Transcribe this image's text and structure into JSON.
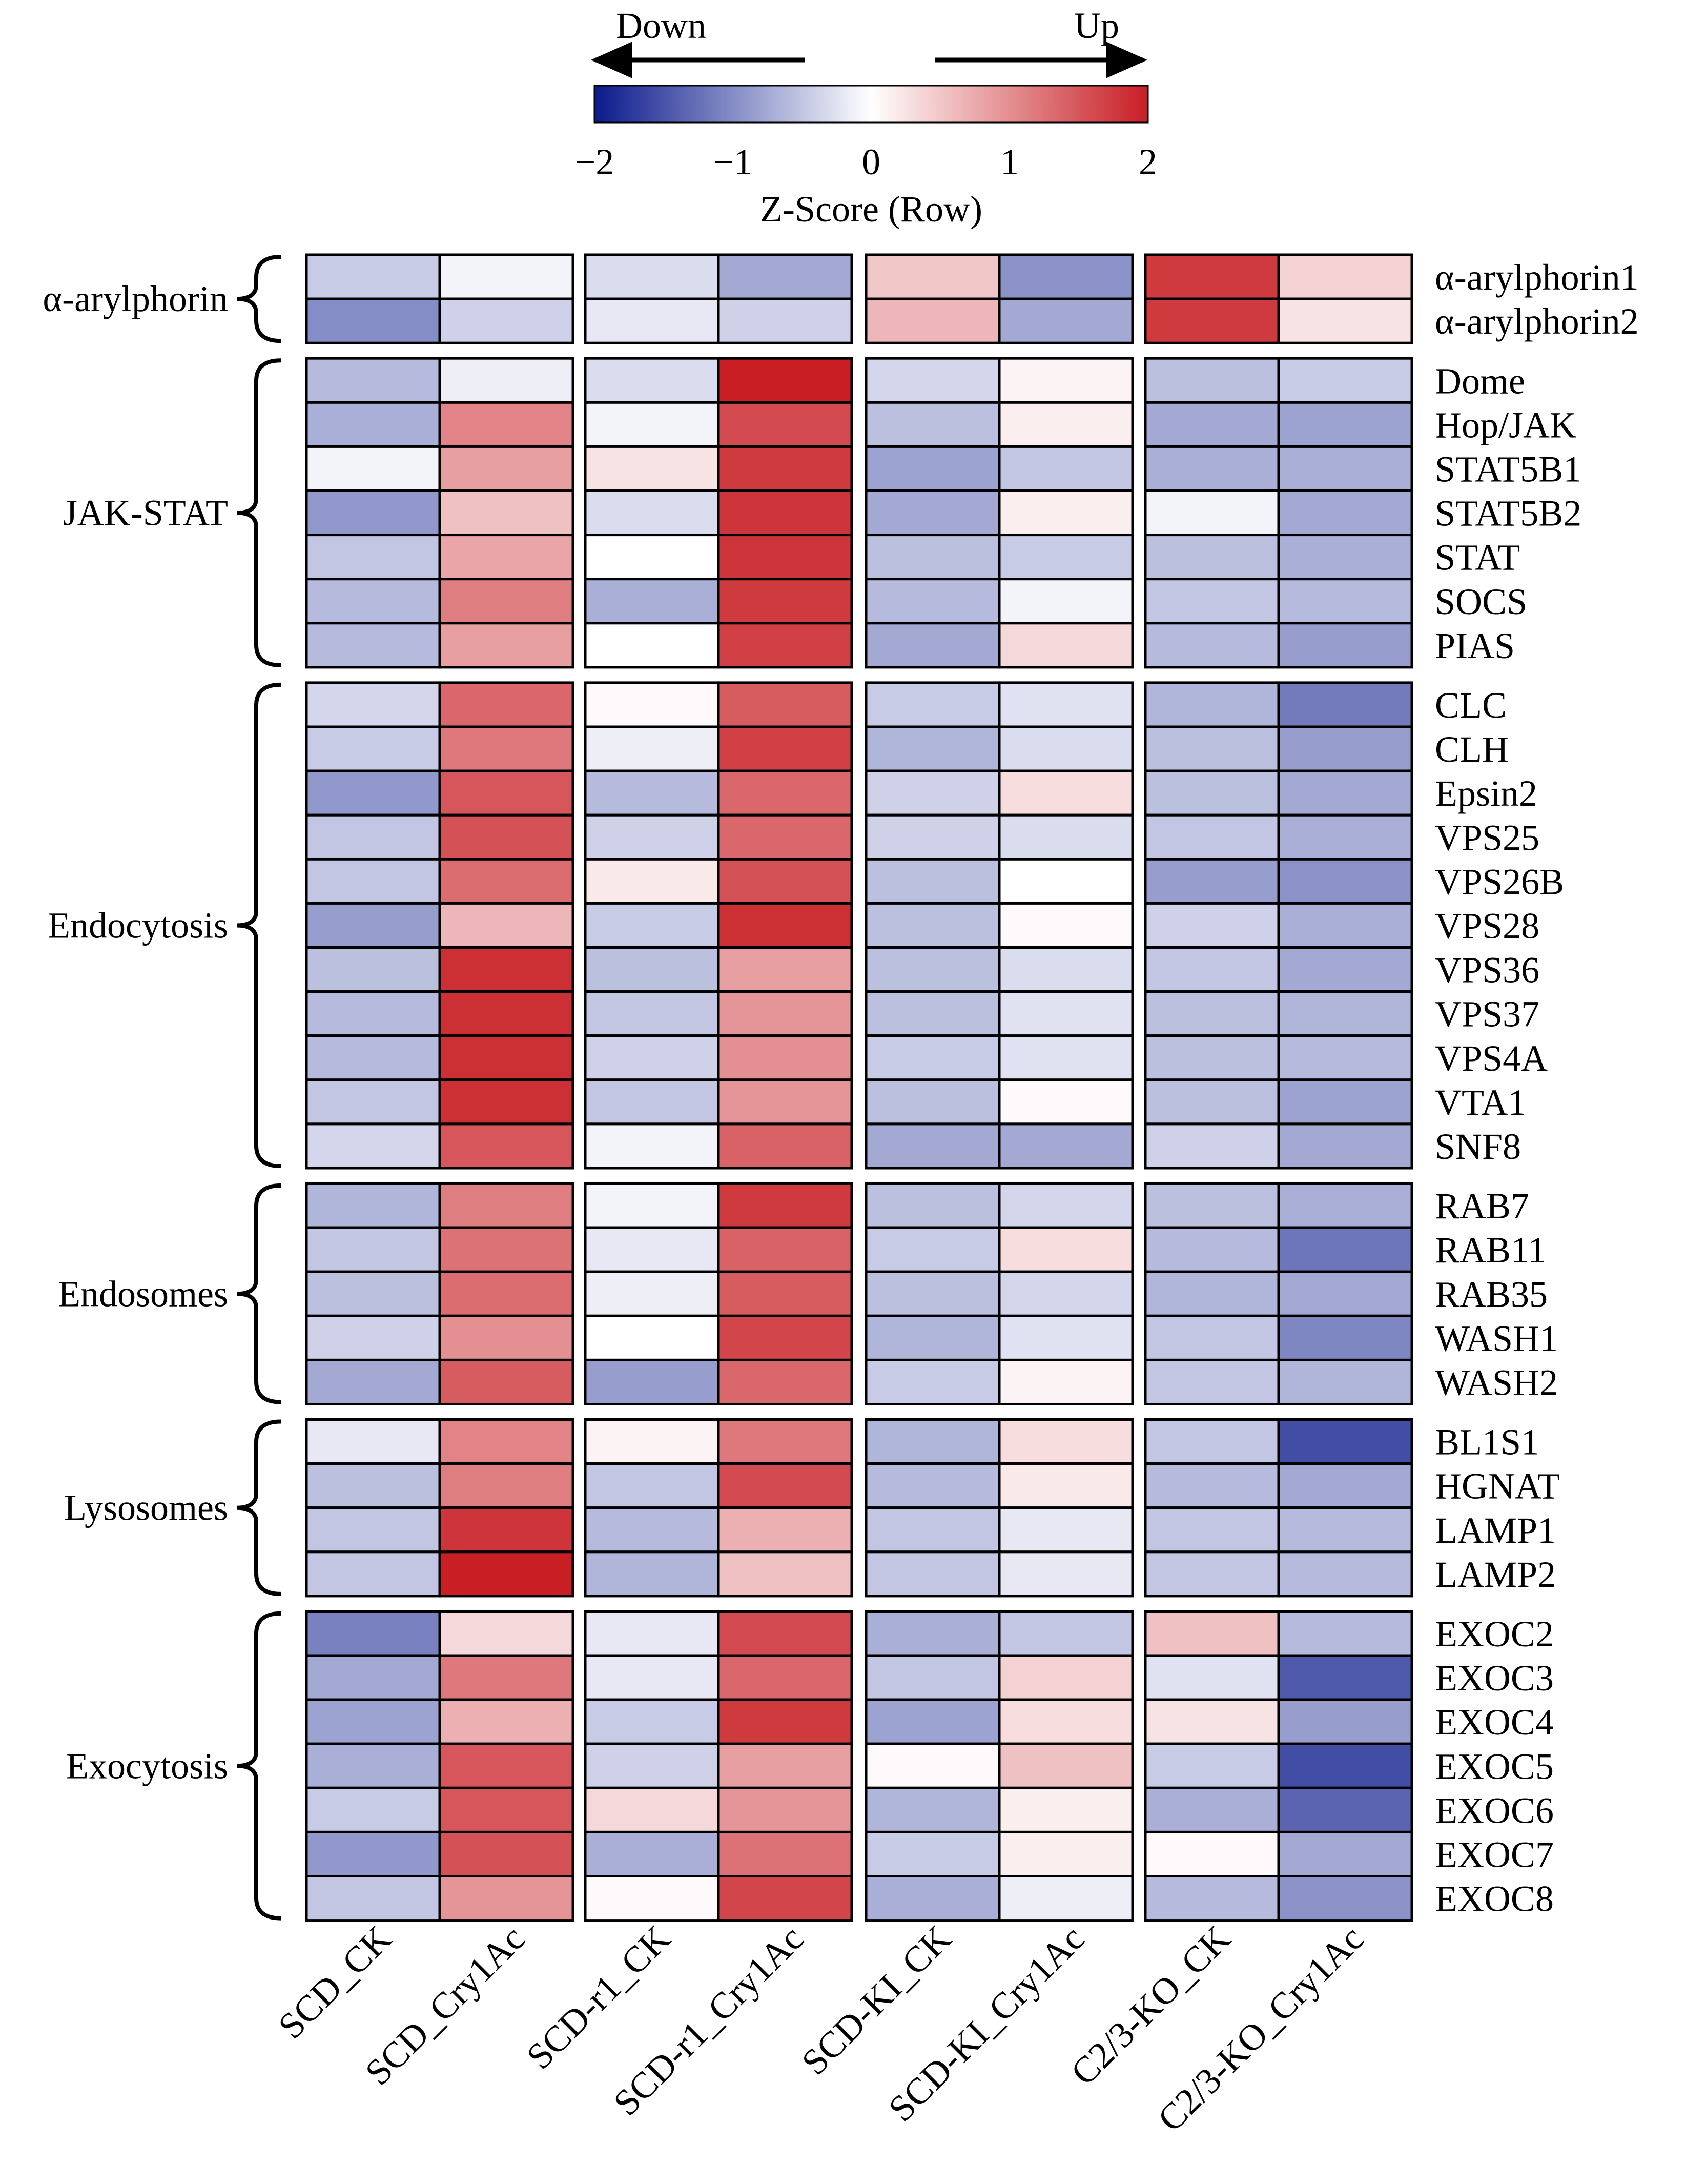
{
  "chart_data": {
    "type": "heatmap",
    "color_scale": {
      "title": "Z-Score (Row)",
      "min": -2,
      "max": 2,
      "ticks": [
        {
          "value": -2,
          "label": "−2"
        },
        {
          "value": -1,
          "label": "−1"
        },
        {
          "value": 0,
          "label": "0"
        },
        {
          "value": 1,
          "label": "1"
        },
        {
          "value": 2,
          "label": "2"
        }
      ],
      "low_color": "#0b1a8c",
      "mid_color": "#ffffff",
      "high_color": "#c81e24",
      "down_label": "Down",
      "up_label": "Up"
    },
    "columns": [
      "SCD_CK",
      "SCD_Cry1Ac",
      "SCD-r1_CK",
      "SCD-r1_Cry1Ac",
      "SCD-KI_CK",
      "SCD-KI_Cry1Ac",
      "C2/3-KO_CK",
      "C2/3-KO_Cry1Ac"
    ],
    "groups": [
      {
        "name": "α-arylphorin",
        "rows": [
          {
            "gene": "α-arylphorin1",
            "values": [
              -0.45,
              -0.1,
              -0.3,
              -0.75,
              0.5,
              -0.95,
              1.75,
              0.4
            ]
          },
          {
            "gene": "α-arylphorin2",
            "values": [
              -1.0,
              -0.4,
              -0.2,
              -0.4,
              0.65,
              -0.75,
              1.75,
              0.25
            ]
          }
        ]
      },
      {
        "name": "JAK-STAT",
        "rows": [
          {
            "gene": "Dome",
            "values": [
              -0.6,
              -0.15,
              -0.3,
              2.0,
              -0.35,
              0.1,
              -0.55,
              -0.45
            ]
          },
          {
            "gene": "Hop/JAK",
            "values": [
              -0.7,
              1.1,
              -0.1,
              1.6,
              -0.55,
              0.15,
              -0.75,
              -0.8
            ]
          },
          {
            "gene": "STAT5B1",
            "values": [
              -0.1,
              0.85,
              0.25,
              1.75,
              -0.8,
              -0.5,
              -0.7,
              -0.7
            ]
          },
          {
            "gene": "STAT5B2",
            "values": [
              -0.9,
              0.55,
              -0.3,
              1.8,
              -0.75,
              0.15,
              -0.1,
              -0.75
            ]
          },
          {
            "gene": "STAT",
            "values": [
              -0.5,
              0.8,
              0.0,
              1.8,
              -0.55,
              -0.45,
              -0.55,
              -0.7
            ]
          },
          {
            "gene": "SOCS",
            "values": [
              -0.6,
              1.15,
              -0.7,
              1.75,
              -0.6,
              -0.1,
              -0.5,
              -0.6
            ]
          },
          {
            "gene": "PIAS",
            "values": [
              -0.6,
              0.85,
              0.0,
              1.7,
              -0.75,
              0.35,
              -0.6,
              -0.85
            ]
          }
        ]
      },
      {
        "name": "Endocytosis",
        "rows": [
          {
            "gene": "CLC",
            "values": [
              -0.35,
              1.35,
              0.05,
              1.45,
              -0.45,
              -0.25,
              -0.65,
              -1.15
            ]
          },
          {
            "gene": "CLH",
            "values": [
              -0.45,
              1.2,
              -0.15,
              1.7,
              -0.65,
              -0.3,
              -0.55,
              -0.85
            ]
          },
          {
            "gene": "Epsin2",
            "values": [
              -0.9,
              1.5,
              -0.6,
              1.35,
              -0.4,
              0.3,
              -0.55,
              -0.75
            ]
          },
          {
            "gene": "VPS25",
            "values": [
              -0.5,
              1.55,
              -0.4,
              1.35,
              -0.4,
              -0.3,
              -0.5,
              -0.7
            ]
          },
          {
            "gene": "VPS26B",
            "values": [
              -0.5,
              1.3,
              0.2,
              1.55,
              -0.55,
              0.0,
              -0.85,
              -0.95
            ]
          },
          {
            "gene": "VPS28",
            "values": [
              -0.85,
              0.65,
              -0.45,
              1.85,
              -0.55,
              0.05,
              -0.4,
              -0.7
            ]
          },
          {
            "gene": "VPS36",
            "values": [
              -0.55,
              1.85,
              -0.55,
              0.85,
              -0.55,
              -0.3,
              -0.5,
              -0.75
            ]
          },
          {
            "gene": "VPS37",
            "values": [
              -0.6,
              1.85,
              -0.5,
              0.95,
              -0.55,
              -0.25,
              -0.55,
              -0.65
            ]
          },
          {
            "gene": "VPS4A",
            "values": [
              -0.6,
              1.85,
              -0.4,
              1.0,
              -0.45,
              -0.25,
              -0.55,
              -0.6
            ]
          },
          {
            "gene": "VTA1",
            "values": [
              -0.5,
              1.85,
              -0.5,
              0.95,
              -0.55,
              0.05,
              -0.55,
              -0.8
            ]
          },
          {
            "gene": "SNF8",
            "values": [
              -0.35,
              1.5,
              -0.1,
              1.4,
              -0.75,
              -0.75,
              -0.4,
              -0.75
            ]
          }
        ]
      },
      {
        "name": "Endosomes",
        "rows": [
          {
            "gene": "RAB7",
            "values": [
              -0.65,
              1.15,
              -0.1,
              1.75,
              -0.55,
              -0.35,
              -0.55,
              -0.7
            ]
          },
          {
            "gene": "RAB11",
            "values": [
              -0.5,
              1.25,
              -0.2,
              1.4,
              -0.45,
              0.3,
              -0.6,
              -1.2
            ]
          },
          {
            "gene": "RAB35",
            "values": [
              -0.55,
              1.3,
              -0.15,
              1.45,
              -0.55,
              -0.35,
              -0.65,
              -0.75
            ]
          },
          {
            "gene": "WASH1",
            "values": [
              -0.4,
              1.0,
              0.0,
              1.65,
              -0.65,
              -0.25,
              -0.5,
              -1.05
            ]
          },
          {
            "gene": "WASH2",
            "values": [
              -0.75,
              1.45,
              -0.85,
              1.35,
              -0.45,
              0.1,
              -0.5,
              -0.65
            ]
          }
        ]
      },
      {
        "name": "Lysosomes",
        "rows": [
          {
            "gene": "BL1S1",
            "values": [
              -0.2,
              1.1,
              0.1,
              1.2,
              -0.65,
              0.3,
              -0.5,
              -1.55
            ]
          },
          {
            "gene": "HGNAT",
            "values": [
              -0.55,
              1.15,
              -0.5,
              1.6,
              -0.6,
              0.2,
              -0.6,
              -0.75
            ]
          },
          {
            "gene": "LAMP1",
            "values": [
              -0.5,
              1.8,
              -0.6,
              0.7,
              -0.5,
              -0.2,
              -0.5,
              -0.6
            ]
          },
          {
            "gene": "LAMP2",
            "values": [
              -0.5,
              2.0,
              -0.65,
              0.55,
              -0.5,
              -0.2,
              -0.5,
              -0.6
            ]
          }
        ]
      },
      {
        "name": "Exocytosis",
        "rows": [
          {
            "gene": "EXOC2",
            "values": [
              -1.1,
              0.35,
              -0.2,
              1.6,
              -0.7,
              -0.5,
              0.55,
              -0.6
            ]
          },
          {
            "gene": "EXOC3",
            "values": [
              -0.75,
              1.2,
              -0.2,
              1.35,
              -0.5,
              0.4,
              -0.25,
              -1.45
            ]
          },
          {
            "gene": "EXOC4",
            "values": [
              -0.8,
              0.7,
              -0.45,
              1.75,
              -0.8,
              0.3,
              0.25,
              -0.85
            ]
          },
          {
            "gene": "EXOC5",
            "values": [
              -0.7,
              1.5,
              -0.4,
              0.85,
              0.05,
              0.55,
              -0.45,
              -1.55
            ]
          },
          {
            "gene": "EXOC6",
            "values": [
              -0.45,
              1.5,
              0.35,
              0.95,
              -0.65,
              0.15,
              -0.7,
              -1.35
            ]
          },
          {
            "gene": "EXOC7",
            "values": [
              -0.9,
              1.55,
              -0.7,
              1.25,
              -0.45,
              0.15,
              0.05,
              -0.75
            ]
          },
          {
            "gene": "EXOC8",
            "values": [
              -0.5,
              0.95,
              0.05,
              1.65,
              -0.7,
              -0.15,
              -0.6,
              -0.95
            ]
          }
        ]
      }
    ]
  }
}
